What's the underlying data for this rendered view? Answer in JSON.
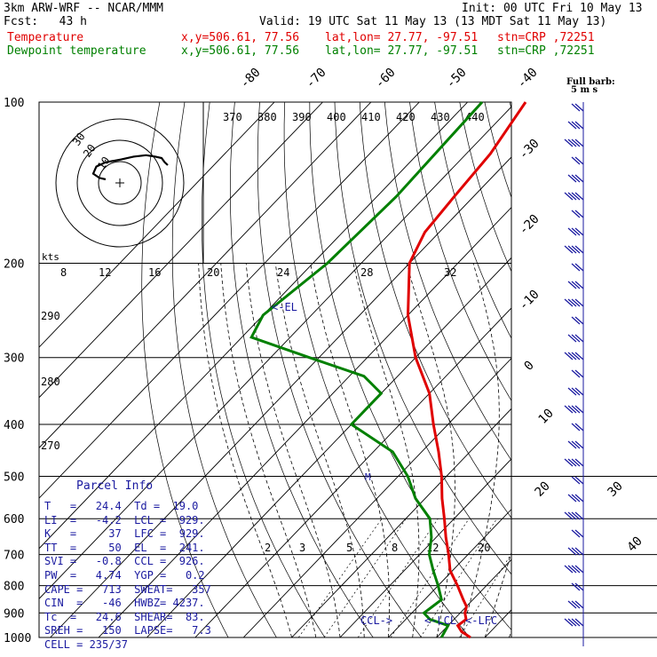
{
  "header": {
    "model": "3km ARW-WRF -- NCAR/MMM",
    "init": "Init: 00 UTC Fri 10 May 13",
    "fcst": "Fcst:   43 h",
    "valid": "Valid: 19 UTC Sat 11 May 13 (13 MDT Sat 11 May 13)",
    "temp_label": "Temperature",
    "dew_label": "Dewpoint temperature",
    "xy": "x,y=506.61, 77.56",
    "latlon": "lat,lon= 27.77, -97.51",
    "stn": "stn=CRP ,72251"
  },
  "colors": {
    "temperature": "#e00000",
    "dewpoint": "#008000",
    "parcel_info": "#1a1aa0",
    "grid": "#000000"
  },
  "parcel_info": {
    "title": "Parcel Info",
    "rows": [
      "T   =   24.4  Td =  19.0",
      "LI  =   -4.2  LCL =  929.",
      "K   =     37  LFC =  929.",
      "TT  =     50  EL  =  241.",
      "SVI =   -0.8  CCL =  926.",
      "PW  =   4.74  YGP =   0.2",
      "CAPE =   713  SWEAT=   357",
      "CIN  =   -46  HWBZ= 4237.",
      "Tc  =   24.6  SHEAR=  83.",
      "SREH =   150  LAPSE=   7.3",
      "CELL = 235/37"
    ]
  },
  "annotations": {
    "el": "<-EL",
    "ccl": "CCL->",
    "lcl": "<-LCL",
    "lfc": "<-LFC",
    "wind_key": "Full barb:",
    "wind_key_units": "5 m s",
    "hodo_units": "kts",
    "m_mark": "M"
  },
  "chart_data": {
    "type": "skew-t",
    "pressure_levels": [
      100,
      200,
      300,
      400,
      500,
      600,
      700,
      800,
      900,
      1000
    ],
    "isotherm_labels": [
      -80,
      -70,
      -60,
      -50,
      -40,
      -30,
      -20,
      -10,
      0,
      10,
      20,
      30,
      40
    ],
    "mixing_ratio_labels": [
      "2",
      "3",
      "5",
      "8",
      "12",
      "20"
    ],
    "theta_labels": [
      370,
      380,
      390,
      400,
      410,
      420,
      430,
      440
    ],
    "theta_side_labels": [
      290,
      280,
      270
    ],
    "hodo_speed_labels": [
      "8",
      "12",
      "16",
      "20",
      "24",
      "28",
      "32"
    ],
    "hodo_ring_labels": [
      "30",
      "20",
      "10"
    ],
    "temperature": [
      {
        "p": 1000,
        "t": 27.0
      },
      {
        "p": 975,
        "t": 24.0
      },
      {
        "p": 950,
        "t": 22.0
      },
      {
        "p": 925,
        "t": 22.5
      },
      {
        "p": 900,
        "t": 21.0
      },
      {
        "p": 875,
        "t": 20.0
      },
      {
        "p": 850,
        "t": 18.0
      },
      {
        "p": 800,
        "t": 14.0
      },
      {
        "p": 750,
        "t": 9.5
      },
      {
        "p": 700,
        "t": 6.0
      },
      {
        "p": 650,
        "t": 2.0
      },
      {
        "p": 600,
        "t": -2.0
      },
      {
        "p": 550,
        "t": -6.5
      },
      {
        "p": 500,
        "t": -11.0
      },
      {
        "p": 450,
        "t": -16.5
      },
      {
        "p": 400,
        "t": -23.0
      },
      {
        "p": 350,
        "t": -30.0
      },
      {
        "p": 300,
        "t": -40.0
      },
      {
        "p": 250,
        "t": -50.0
      },
      {
        "p": 200,
        "t": -60.0
      },
      {
        "p": 175,
        "t": -63.0
      },
      {
        "p": 150,
        "t": -64.0
      },
      {
        "p": 125,
        "t": -65.0
      },
      {
        "p": 100,
        "t": -68.0
      }
    ],
    "dewpoint": [
      {
        "p": 1000,
        "t": 21.0
      },
      {
        "p": 975,
        "t": 20.5
      },
      {
        "p": 950,
        "t": 20.0
      },
      {
        "p": 925,
        "t": 15.0
      },
      {
        "p": 900,
        "t": 12.5
      },
      {
        "p": 875,
        "t": 13.0
      },
      {
        "p": 850,
        "t": 13.5
      },
      {
        "p": 800,
        "t": 10.0
      },
      {
        "p": 750,
        "t": 6.0
      },
      {
        "p": 700,
        "t": 2.0
      },
      {
        "p": 650,
        "t": -1.0
      },
      {
        "p": 600,
        "t": -5.0
      },
      {
        "p": 550,
        "t": -12.0
      },
      {
        "p": 500,
        "t": -18.0
      },
      {
        "p": 450,
        "t": -26.0
      },
      {
        "p": 400,
        "t": -40.0
      },
      {
        "p": 375,
        "t": -40.0
      },
      {
        "p": 350,
        "t": -40.0
      },
      {
        "p": 325,
        "t": -47.0
      },
      {
        "p": 300,
        "t": -62.0
      },
      {
        "p": 275,
        "t": -78.0
      },
      {
        "p": 250,
        "t": -80.0
      },
      {
        "p": 200,
        "t": -77.0
      },
      {
        "p": 150,
        "t": -76.0
      },
      {
        "p": 100,
        "t": -77.0
      }
    ],
    "hodograph": [
      [
        0,
        0
      ],
      [
        -2,
        1
      ],
      [
        -4,
        4
      ],
      [
        -3,
        9
      ],
      [
        0,
        12
      ],
      [
        5,
        14
      ],
      [
        9,
        16
      ],
      [
        13,
        17
      ],
      [
        16,
        16
      ],
      [
        18,
        15
      ],
      [
        19,
        12
      ],
      [
        20,
        10
      ]
    ]
  }
}
